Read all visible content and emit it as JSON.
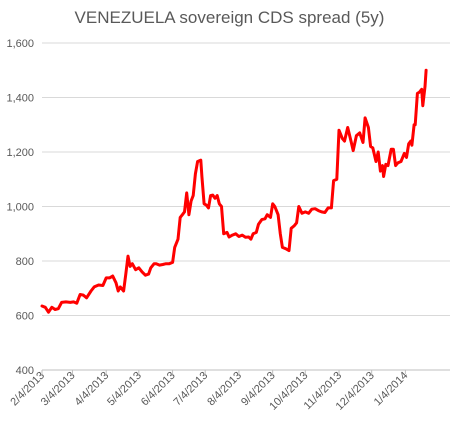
{
  "chart_data": {
    "type": "line",
    "title": "VENEZUELA sovereign CDS spread (5y)",
    "xlabel": "",
    "ylabel": "",
    "ylim": [
      400,
      1600
    ],
    "yticks": [
      400,
      600,
      800,
      1000,
      1200,
      1400,
      1600
    ],
    "ytick_labels": [
      "400",
      "600",
      "800",
      "1,000",
      "1,200",
      "1,400",
      "1,600"
    ],
    "xlim": [
      "2013-02-04",
      "2014-02-14"
    ],
    "xticks": [
      "2013-02-04",
      "2013-03-04",
      "2013-04-04",
      "2013-05-04",
      "2013-06-04",
      "2013-07-04",
      "2013-08-04",
      "2013-09-04",
      "2013-10-04",
      "2013-11-04",
      "2013-12-04",
      "2014-01-04"
    ],
    "xtick_labels": [
      "2/4/2013",
      "3/4/2013",
      "4/4/2013",
      "5/4/2013",
      "6/4/2013",
      "7/4/2013",
      "8/4/2013",
      "9/4/2013",
      "10/4/2013",
      "11/4/2013",
      "12/4/2013",
      "1/4/2014"
    ],
    "grid": true,
    "legend": "none",
    "line_color": "#ff0000",
    "series": [
      {
        "points": [
          [
            "2013-02-04",
            635
          ],
          [
            "2013-02-07",
            630
          ],
          [
            "2013-02-10",
            612
          ],
          [
            "2013-02-13",
            630
          ],
          [
            "2013-02-16",
            622
          ],
          [
            "2013-02-19",
            625
          ],
          [
            "2013-02-22",
            648
          ],
          [
            "2013-02-26",
            650
          ],
          [
            "2013-03-02",
            648
          ],
          [
            "2013-03-05",
            650
          ],
          [
            "2013-03-08",
            645
          ],
          [
            "2013-03-11",
            677
          ],
          [
            "2013-03-14",
            675
          ],
          [
            "2013-03-17",
            665
          ],
          [
            "2013-03-21",
            690
          ],
          [
            "2013-03-24",
            705
          ],
          [
            "2013-03-28",
            712
          ],
          [
            "2013-04-01",
            710
          ],
          [
            "2013-04-04",
            738
          ],
          [
            "2013-04-07",
            738
          ],
          [
            "2013-04-10",
            745
          ],
          [
            "2013-04-13",
            720
          ],
          [
            "2013-04-15",
            690
          ],
          [
            "2013-04-17",
            705
          ],
          [
            "2013-04-20",
            690
          ],
          [
            "2013-04-22",
            752
          ],
          [
            "2013-04-24",
            818
          ],
          [
            "2013-04-26",
            780
          ],
          [
            "2013-04-28",
            790
          ],
          [
            "2013-05-01",
            768
          ],
          [
            "2013-05-04",
            775
          ],
          [
            "2013-05-07",
            760
          ],
          [
            "2013-05-10",
            748
          ],
          [
            "2013-05-13",
            752
          ],
          [
            "2013-05-15",
            775
          ],
          [
            "2013-05-18",
            790
          ],
          [
            "2013-05-20",
            790
          ],
          [
            "2013-05-23",
            785
          ],
          [
            "2013-05-26",
            787
          ],
          [
            "2013-05-29",
            790
          ],
          [
            "2013-06-01",
            790
          ],
          [
            "2013-06-04",
            795
          ],
          [
            "2013-06-06",
            850
          ],
          [
            "2013-06-09",
            880
          ],
          [
            "2013-06-11",
            960
          ],
          [
            "2013-06-13",
            970
          ],
          [
            "2013-06-15",
            980
          ],
          [
            "2013-06-17",
            1050
          ],
          [
            "2013-06-19",
            970
          ],
          [
            "2013-06-21",
            1020
          ],
          [
            "2013-06-23",
            1040
          ],
          [
            "2013-06-25",
            1120
          ],
          [
            "2013-06-27",
            1165
          ],
          [
            "2013-06-30",
            1170
          ],
          [
            "2013-07-01",
            1110
          ],
          [
            "2013-07-03",
            1010
          ],
          [
            "2013-07-05",
            1005
          ],
          [
            "2013-07-07",
            995
          ],
          [
            "2013-07-09",
            1040
          ],
          [
            "2013-07-11",
            1042
          ],
          [
            "2013-07-13",
            1030
          ],
          [
            "2013-07-15",
            1040
          ],
          [
            "2013-07-17",
            1010
          ],
          [
            "2013-07-19",
            1000
          ],
          [
            "2013-07-21",
            900
          ],
          [
            "2013-07-24",
            905
          ],
          [
            "2013-07-26",
            888
          ],
          [
            "2013-07-29",
            895
          ],
          [
            "2013-08-01",
            900
          ],
          [
            "2013-08-04",
            890
          ],
          [
            "2013-08-07",
            895
          ],
          [
            "2013-08-10",
            887
          ],
          [
            "2013-08-13",
            888
          ],
          [
            "2013-08-15",
            880
          ],
          [
            "2013-08-17",
            900
          ],
          [
            "2013-08-20",
            905
          ],
          [
            "2013-08-22",
            935
          ],
          [
            "2013-08-25",
            952
          ],
          [
            "2013-08-28",
            955
          ],
          [
            "2013-08-30",
            970
          ],
          [
            "2013-09-02",
            960
          ],
          [
            "2013-09-04",
            1010
          ],
          [
            "2013-09-06",
            1000
          ],
          [
            "2013-09-09",
            970
          ],
          [
            "2013-09-11",
            900
          ],
          [
            "2013-09-13",
            850
          ],
          [
            "2013-09-16",
            845
          ],
          [
            "2013-09-19",
            838
          ],
          [
            "2013-09-21",
            920
          ],
          [
            "2013-09-24",
            930
          ],
          [
            "2013-09-26",
            940
          ],
          [
            "2013-09-28",
            1000
          ],
          [
            "2013-10-01",
            975
          ],
          [
            "2013-10-04",
            980
          ],
          [
            "2013-10-07",
            975
          ],
          [
            "2013-10-10",
            990
          ],
          [
            "2013-10-13",
            992
          ],
          [
            "2013-10-16",
            985
          ],
          [
            "2013-10-19",
            980
          ],
          [
            "2013-10-22",
            978
          ],
          [
            "2013-10-25",
            995
          ],
          [
            "2013-10-28",
            995
          ],
          [
            "2013-10-30",
            1095
          ],
          [
            "2013-11-02",
            1100
          ],
          [
            "2013-11-04",
            1280
          ],
          [
            "2013-11-07",
            1250
          ],
          [
            "2013-11-09",
            1240
          ],
          [
            "2013-11-12",
            1290
          ],
          [
            "2013-11-15",
            1240
          ],
          [
            "2013-11-17",
            1205
          ],
          [
            "2013-11-20",
            1260
          ],
          [
            "2013-11-23",
            1270
          ],
          [
            "2013-11-26",
            1235
          ],
          [
            "2013-11-28",
            1325
          ],
          [
            "2013-12-01",
            1290
          ],
          [
            "2013-12-03",
            1220
          ],
          [
            "2013-12-05",
            1215
          ],
          [
            "2013-12-08",
            1165
          ],
          [
            "2013-12-10",
            1200
          ],
          [
            "2013-12-12",
            1130
          ],
          [
            "2013-12-14",
            1150
          ],
          [
            "2013-12-15",
            1110
          ],
          [
            "2013-12-17",
            1155
          ],
          [
            "2013-12-19",
            1150
          ],
          [
            "2013-12-22",
            1210
          ],
          [
            "2013-12-24",
            1210
          ],
          [
            "2013-12-26",
            1150
          ],
          [
            "2013-12-28",
            1160
          ],
          [
            "2013-12-31",
            1165
          ],
          [
            "2014-01-03",
            1195
          ],
          [
            "2014-01-05",
            1180
          ],
          [
            "2014-01-07",
            1230
          ],
          [
            "2014-01-09",
            1240
          ],
          [
            "2014-01-10",
            1225
          ],
          [
            "2014-01-12",
            1300
          ],
          [
            "2014-01-13",
            1300
          ],
          [
            "2014-01-15",
            1415
          ],
          [
            "2014-01-17",
            1420
          ],
          [
            "2014-01-19",
            1430
          ],
          [
            "2014-01-20",
            1370
          ],
          [
            "2014-01-22",
            1440
          ],
          [
            "2014-01-23",
            1500
          ]
        ]
      }
    ]
  }
}
